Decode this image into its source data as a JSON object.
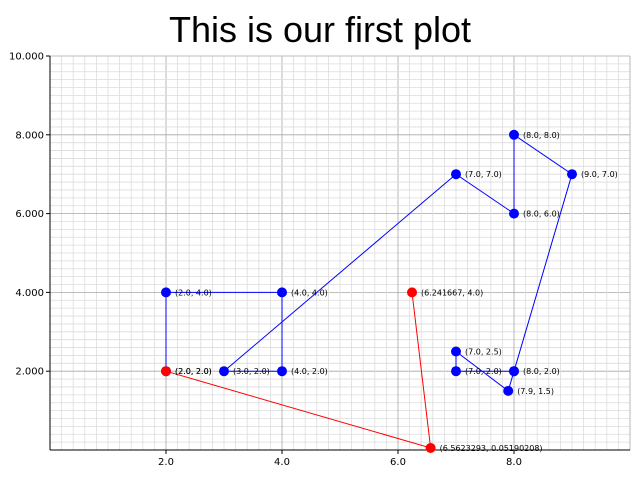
{
  "chart_data": {
    "type": "scatter",
    "title": "This is our first plot",
    "xlabel": "",
    "ylabel": "",
    "xlim": [
      0,
      10
    ],
    "ylim": [
      0,
      10
    ],
    "grid": true,
    "x_ticks": [
      {
        "value": 2,
        "label": "2.0"
      },
      {
        "value": 4,
        "label": "4.0"
      },
      {
        "value": 6,
        "label": "6.0"
      },
      {
        "value": 8,
        "label": "8.0"
      }
    ],
    "y_ticks": [
      {
        "value": 2,
        "label": "2.000"
      },
      {
        "value": 4,
        "label": "4.000"
      },
      {
        "value": 6,
        "label": "6.000"
      },
      {
        "value": 8,
        "label": "8.000"
      },
      {
        "value": 10,
        "label": "10.000"
      }
    ],
    "series": [
      {
        "color": "#0000ff",
        "points": [
          {
            "x": 2.0,
            "y": 2.0,
            "label": "(2.0, 2.0)"
          },
          {
            "x": 2.0,
            "y": 4.0,
            "label": "(2.0, 4.0)"
          },
          {
            "x": 4.0,
            "y": 4.0,
            "label": "(4.0, 4.0)"
          },
          {
            "x": 4.0,
            "y": 2.0,
            "label": "(4.0, 2.0)"
          },
          {
            "x": 3.0,
            "y": 2.0,
            "label": "(3.0, 2.0)"
          },
          {
            "x": 7.0,
            "y": 7.0,
            "label": "(7.0, 7.0)"
          },
          {
            "x": 8.0,
            "y": 6.0,
            "label": "(8.0, 6.0)"
          },
          {
            "x": 8.0,
            "y": 8.0,
            "label": "(8.0, 8.0)"
          },
          {
            "x": 9.0,
            "y": 7.0,
            "label": "(9.0, 7.0)"
          },
          {
            "x": 8.0,
            "y": 2.0,
            "label": "(8.0, 2.0)"
          },
          {
            "x": 7.9,
            "y": 1.5,
            "label": "(7.9, 1.5)"
          },
          {
            "x": 7.0,
            "y": 2.5,
            "label": "(7.0, 2.5)"
          },
          {
            "x": 7.0,
            "y": 2.0,
            "label": "(7.0, 2.0)"
          },
          {
            "x": 8.0,
            "y": 2.0,
            "label": ""
          }
        ]
      },
      {
        "color": "#ff0000",
        "points": [
          {
            "x": 2.0,
            "y": 2.0,
            "label": "(2.0, 2.0)"
          },
          {
            "x": 6.5623293,
            "y": 0.05190208,
            "label": "(6.5623293, 0.05190208)"
          },
          {
            "x": 6.241667,
            "y": 4.0,
            "label": "(6.241667, 4.0)"
          }
        ]
      }
    ]
  }
}
